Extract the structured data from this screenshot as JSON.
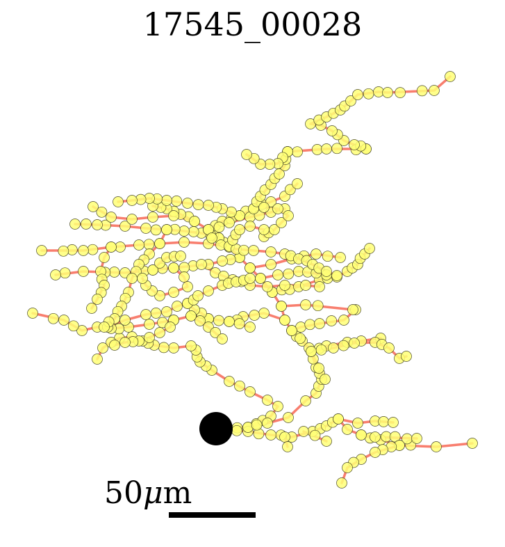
{
  "title": "17545_00028",
  "scale_bar": {
    "number": "50",
    "unit": "m",
    "mu": "μ"
  },
  "colors": {
    "track": "#f87e6e",
    "point_fill": "#ffff77",
    "point_stroke": "#4a4a2a",
    "soma": "#000000"
  }
}
